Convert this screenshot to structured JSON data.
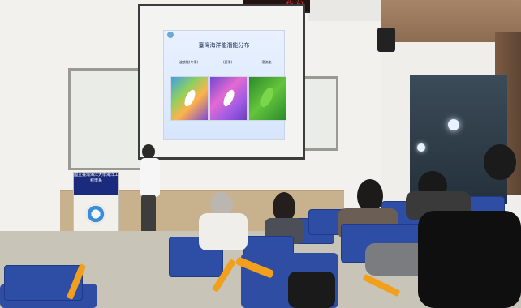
{
  "sign": {
    "text": "作坊)"
  },
  "slide": {
    "title": "臺灣海洋能潛能分布",
    "captions": [
      "波浪能(冬季)",
      "(夏季)",
      "潮流能"
    ]
  },
  "podium": {
    "label": "國立臺灣海洋大學海洋工程學系"
  },
  "colors": {
    "seat": "#2e4ea6",
    "seat_arm": "#f2a01c",
    "podium_label": "#1a2a7c"
  }
}
